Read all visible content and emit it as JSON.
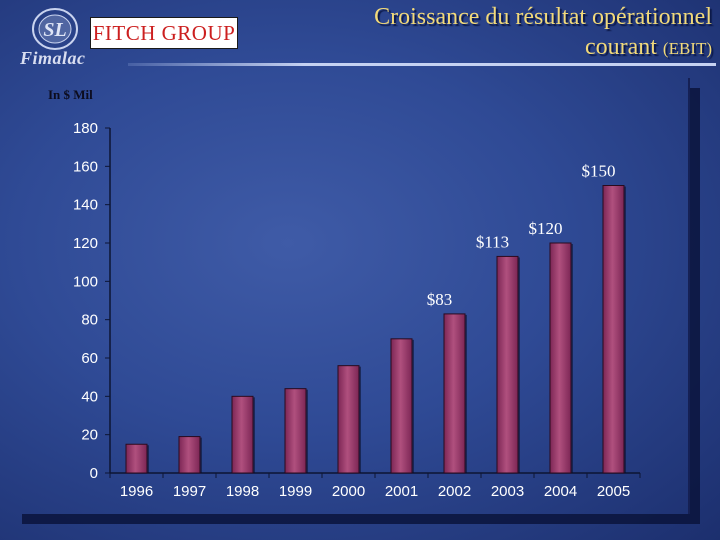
{
  "header": {
    "logo_text": "Fimalac",
    "logo_seal_text": "SL",
    "brand_box_text": "FITCH GROUP",
    "title_line1": "Croissance du résultat opérationnel",
    "title_line2_main": "courant",
    "title_line2_small": "(EBIT)"
  },
  "colors": {
    "bar_fill": "#7c2655",
    "bar_highlight": "#b0507e",
    "title": "#f1d97a",
    "background": "#2f4a95"
  },
  "chart_data": {
    "type": "bar",
    "ylabel": "In $ Mil",
    "categories": [
      "1996",
      "1997",
      "1998",
      "1999",
      "2000",
      "2001",
      "2002",
      "2003",
      "2004",
      "2005"
    ],
    "values": [
      15,
      19,
      40,
      44,
      56,
      70,
      83,
      113,
      120,
      150
    ],
    "data_labels": [
      "",
      "",
      "",
      "",
      "",
      "",
      "$83",
      "$113",
      "$120",
      "$150"
    ],
    "ylim": [
      0,
      180
    ],
    "yticks": [
      0,
      20,
      40,
      60,
      80,
      100,
      120,
      140,
      160,
      180
    ],
    "grid": false,
    "legend": "none"
  }
}
